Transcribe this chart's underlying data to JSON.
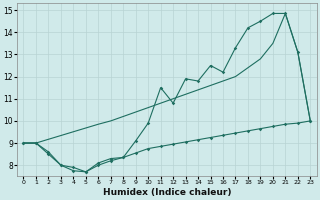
{
  "xlabel": "Humidex (Indice chaleur)",
  "bg_color": "#d0eaea",
  "grid_color": "#b8d4d4",
  "line_color": "#1e6e60",
  "x_values": [
    0,
    1,
    2,
    3,
    4,
    5,
    6,
    7,
    8,
    9,
    10,
    11,
    12,
    13,
    14,
    15,
    16,
    17,
    18,
    19,
    20,
    21,
    22,
    23
  ],
  "y_main": [
    9.0,
    9.0,
    8.6,
    8.0,
    7.9,
    7.7,
    8.1,
    8.3,
    8.35,
    9.1,
    9.9,
    11.5,
    10.8,
    11.9,
    11.8,
    12.5,
    12.2,
    13.3,
    14.2,
    14.5,
    14.85,
    14.85,
    13.1,
    10.0
  ],
  "y_upper": [
    9.0,
    9.0,
    9.17,
    9.34,
    9.51,
    9.68,
    9.85,
    10.0,
    10.2,
    10.4,
    10.6,
    10.8,
    11.0,
    11.2,
    11.4,
    11.6,
    11.8,
    12.0,
    12.4,
    12.8,
    13.5,
    14.85,
    13.1,
    10.0
  ],
  "y_lower": [
    9.0,
    9.0,
    8.5,
    8.0,
    7.75,
    7.7,
    8.0,
    8.2,
    8.35,
    8.55,
    8.75,
    8.85,
    8.95,
    9.05,
    9.15,
    9.25,
    9.35,
    9.45,
    9.55,
    9.65,
    9.75,
    9.85,
    9.9,
    10.0
  ],
  "ylim": [
    7.5,
    15.3
  ],
  "xlim": [
    -0.5,
    23.5
  ],
  "yticks": [
    8,
    9,
    10,
    11,
    12,
    13,
    14,
    15
  ],
  "xtick_labels": [
    "0",
    "1",
    "2",
    "3",
    "4",
    "5",
    "6",
    "7",
    "8",
    "9",
    "10",
    "11",
    "12",
    "13",
    "14",
    "15",
    "16",
    "17",
    "18",
    "19",
    "20",
    "21",
    "22",
    "23"
  ]
}
